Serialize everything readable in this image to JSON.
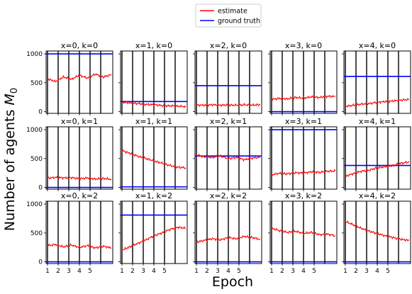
{
  "chart_data": {
    "type": "line",
    "xlabel": "Epoch",
    "ylabel": "Number of agents",
    "ylabel_symbol": "M",
    "ylabel_subscript": "0",
    "legend": {
      "placement": "top-center",
      "entries": [
        {
          "name": "estimate",
          "color": "#ff0000"
        },
        {
          "name": "ground truth",
          "color": "#0000ff"
        }
      ]
    },
    "x_ticks": [
      "1",
      "2",
      "3",
      "4",
      "5"
    ],
    "y_ticks": [
      "0",
      "500",
      "1000"
    ],
    "ylim": [
      -30,
      1050
    ],
    "epochs": 6,
    "grid": false,
    "colors": {
      "estimate": "#ff0000",
      "ground_truth": "#0000ff",
      "epoch_line": "#000000"
    },
    "panels": [
      {
        "title": "x=0, k=0",
        "ground_truth": 1000,
        "estimate": [
          570,
          520,
          600,
          560,
          630,
          580,
          650,
          600,
          640
        ]
      },
      {
        "title": "x=1, k=0",
        "ground_truth": 175,
        "estimate": [
          165,
          150,
          140,
          125,
          120,
          105,
          100,
          95,
          85
        ]
      },
      {
        "title": "x=2, k=0",
        "ground_truth": 450,
        "estimate": [
          115,
          110,
          118,
          112,
          115,
          110,
          118,
          112,
          120
        ]
      },
      {
        "title": "x=3, k=0",
        "ground_truth": 0,
        "estimate": [
          210,
          230,
          220,
          245,
          235,
          255,
          245,
          265,
          260
        ]
      },
      {
        "title": "x=4, k=0",
        "ground_truth": 610,
        "estimate": [
          90,
          110,
          130,
          140,
          160,
          175,
          185,
          200,
          210
        ]
      },
      {
        "title": "x=0, k=1",
        "ground_truth": 0,
        "estimate": [
          160,
          175,
          165,
          170,
          150,
          165,
          145,
          155,
          140
        ]
      },
      {
        "title": "x=1, k=1",
        "ground_truth": 10,
        "estimate": [
          640,
          590,
          540,
          500,
          460,
          420,
          380,
          350,
          340
        ]
      },
      {
        "title": "x=2, k=1",
        "ground_truth": 545,
        "estimate": [
          560,
          530,
          520,
          545,
          500,
          520,
          480,
          510,
          520
        ]
      },
      {
        "title": "x=3, k=1",
        "ground_truth": 1000,
        "estimate": [
          220,
          245,
          235,
          255,
          250,
          270,
          260,
          280,
          285
        ]
      },
      {
        "title": "x=4, k=1",
        "ground_truth": 380,
        "estimate": [
          190,
          240,
          280,
          300,
          340,
          360,
          380,
          420,
          440
        ]
      },
      {
        "title": "x=0, k=2",
        "ground_truth": 0,
        "estimate": [
          280,
          300,
          260,
          290,
          250,
          280,
          240,
          270,
          240
        ]
      },
      {
        "title": "x=1, k=2",
        "ground_truth": 810,
        "estimate": [
          200,
          260,
          320,
          380,
          450,
          500,
          560,
          600,
          580
        ]
      },
      {
        "title": "x=2, k=2",
        "ground_truth": 0,
        "estimate": [
          340,
          370,
          400,
          380,
          420,
          400,
          440,
          420,
          390
        ]
      },
      {
        "title": "x=3, k=2",
        "ground_truth": 0,
        "estimate": [
          580,
          540,
          510,
          530,
          490,
          510,
          470,
          480,
          450
        ]
      },
      {
        "title": "x=4, k=2",
        "ground_truth": 0,
        "estimate": [
          700,
          640,
          580,
          530,
          490,
          450,
          420,
          390,
          370
        ]
      }
    ]
  }
}
